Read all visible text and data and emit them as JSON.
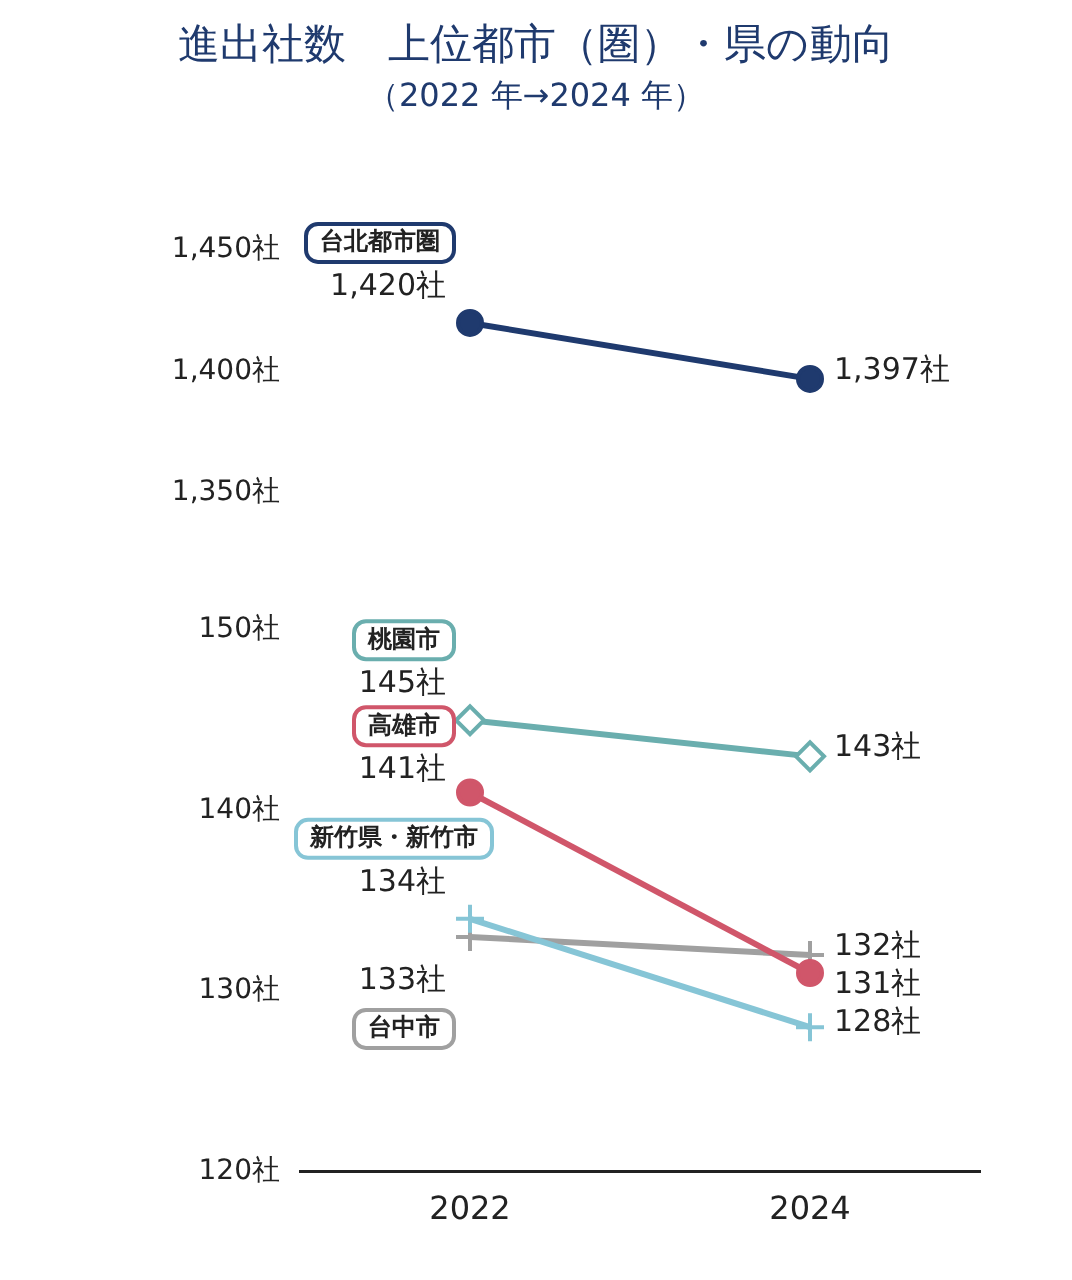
{
  "chart_data": [
    {
      "type": "line",
      "title": "進出社数　上位都市（圏）・県の動向",
      "subtitle": "（2022 年→2024 年）",
      "categories": [
        "2022",
        "2024"
      ],
      "series": [
        {
          "name": "台北都市圏",
          "color": "#1f3a6e",
          "marker": "circle",
          "values": [
            1420,
            1397
          ],
          "value_labels": [
            "1,420社",
            "1,397社"
          ]
        }
      ],
      "ylim": [
        1350,
        1450
      ],
      "yticks": [
        {
          "value": 1350,
          "label": "1,350社"
        },
        {
          "value": 1400,
          "label": "1,400社"
        },
        {
          "value": 1450,
          "label": "1,450社"
        }
      ],
      "tick_labels": "y",
      "grid": false,
      "legend": false
    },
    {
      "type": "line",
      "categories": [
        "2022",
        "2024"
      ],
      "series": [
        {
          "name": "桃園市",
          "color": "#6aaeae",
          "marker": "diamond",
          "values": [
            145,
            143
          ],
          "value_labels": [
            "145社",
            "143社"
          ]
        },
        {
          "name": "高雄市",
          "color": "#d0566a",
          "marker": "circle",
          "values": [
            141,
            131
          ],
          "value_labels": [
            "141社",
            "131社"
          ]
        },
        {
          "name": "新竹県・新竹市",
          "color": "#86c5d6",
          "marker": "cross",
          "values": [
            134,
            128
          ],
          "value_labels": [
            "134社",
            "128社"
          ]
        },
        {
          "name": "台中市",
          "color": "#a0a0a0",
          "marker": "cross",
          "values": [
            133,
            132
          ],
          "value_labels": [
            "133社",
            "132社"
          ]
        }
      ],
      "ylim": [
        120,
        150
      ],
      "yticks": [
        {
          "value": 120,
          "label": "120社"
        },
        {
          "value": 130,
          "label": "130社"
        },
        {
          "value": 140,
          "label": "140社"
        },
        {
          "value": 150,
          "label": "150社"
        }
      ],
      "grid": false,
      "legend": false
    }
  ]
}
